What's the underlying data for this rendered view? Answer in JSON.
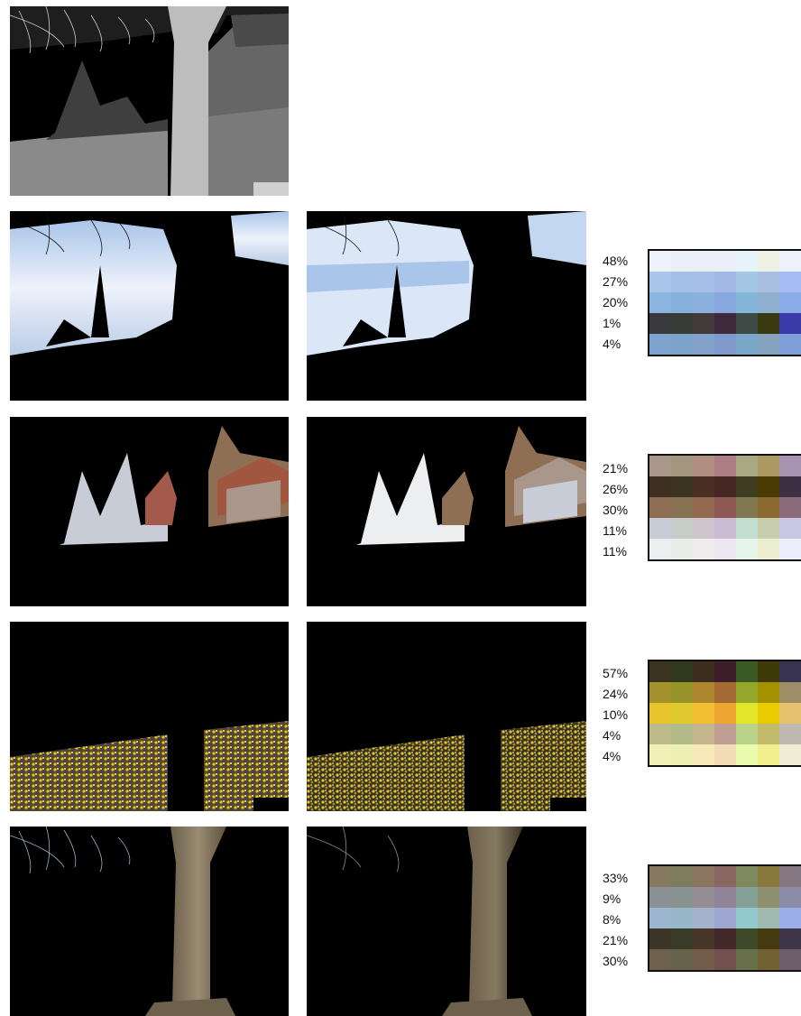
{
  "rows": [
    {
      "percentages": [
        "48%",
        "27%",
        "20%",
        "1%",
        "4%"
      ],
      "swatches": [
        [
          "#eef2fb",
          "#e9eef8",
          "#eceff9",
          "#ebeef8",
          "#e6f3fb",
          "#ecf1e4",
          "#eef0fa"
        ],
        [
          "#a9c5ea",
          "#a3c0e6",
          "#a6bfe6",
          "#a4b8e8",
          "#a2c6e4",
          "#a8bfe0",
          "#a6bcf2"
        ],
        [
          "#8bb4e0",
          "#86b0dc",
          "#8bb1de",
          "#89a8e0",
          "#84b6d9",
          "#8fb0cf",
          "#8aaae8"
        ],
        [
          "#3a3a3e",
          "#393b37",
          "#433a3c",
          "#3d2a3c",
          "#3e4a45",
          "#3a3a12",
          "#3b3aa8"
        ],
        [
          "#7ea4cf",
          "#7ba2c8",
          "#83a2ca",
          "#809acd",
          "#7aa8c9",
          "#86a4bf",
          "#809fd8"
        ]
      ]
    },
    {
      "percentages": [
        "21%",
        "26%",
        "30%",
        "11%",
        "11%"
      ],
      "swatches": [
        [
          "#a8978a",
          "#a3977f",
          "#b08f81",
          "#ad7e86",
          "#a9aa84",
          "#ac9a62",
          "#a793b2"
        ],
        [
          "#3d3022",
          "#3a3421",
          "#4a3024",
          "#472724",
          "#3e3d21",
          "#4a3b05",
          "#3d3044"
        ],
        [
          "#8e6f53",
          "#877254",
          "#936a4f",
          "#8e5954",
          "#7f7850",
          "#8a6a30",
          "#8c6c7a"
        ],
        [
          "#c7ccd6",
          "#c6ceca",
          "#cec6cd",
          "#cbbcd4",
          "#c2ddd1",
          "#c8cdb0",
          "#c8c8e4"
        ],
        [
          "#eceef0",
          "#e8ede9",
          "#f0ebec",
          "#ece6f1",
          "#e6f5ea",
          "#eceed2",
          "#eceffb"
        ]
      ]
    },
    {
      "percentages": [
        "57%",
        "24%",
        "10%",
        "4%",
        "4%"
      ],
      "swatches": [
        [
          "#39331f",
          "#2f3a1f",
          "#3e2e20",
          "#3d1e2a",
          "#3a5a24",
          "#3d3a08",
          "#393352"
        ],
        [
          "#a4922c",
          "#98922a",
          "#ad862f",
          "#a36a34",
          "#93a82a",
          "#a39100",
          "#9e8e68"
        ],
        [
          "#e8c52c",
          "#dfc92f",
          "#f2bf34",
          "#eea531",
          "#e1e62b",
          "#e8cb00",
          "#e6c26e"
        ],
        [
          "#bcb98b",
          "#b3ba8a",
          "#c5b58c",
          "#c19e94",
          "#b9d388",
          "#c3bb6c",
          "#bdb8b0"
        ],
        [
          "#f1eeb8",
          "#ecf0b4",
          "#f6eab9",
          "#f3dcb7",
          "#eafbae",
          "#f1f08e",
          "#f0ecd6"
        ]
      ]
    },
    {
      "percentages": [
        "33%",
        "9%",
        "8%",
        "21%",
        "30%"
      ],
      "swatches": [
        [
          "#857a60",
          "#7e7c5e",
          "#8c7560",
          "#8b6763",
          "#7e8a5d",
          "#897a3c",
          "#857883"
        ],
        [
          "#8a9093",
          "#879390",
          "#948d92",
          "#8f8596",
          "#85a197",
          "#8f9070",
          "#8a8ca8"
        ],
        [
          "#9db4cf",
          "#97b6c7",
          "#a5b2cb",
          "#a1a6d0",
          "#92c9ca",
          "#9fb8b0",
          "#9baeea"
        ],
        [
          "#3d3528",
          "#383b28",
          "#473527",
          "#432a2a",
          "#3c4a2a",
          "#453a0f",
          "#3e3548"
        ],
        [
          "#6d604c",
          "#67624b",
          "#745c4b",
          "#72504f",
          "#67704a",
          "#726233",
          "#6e5e6c"
        ]
      ]
    }
  ]
}
